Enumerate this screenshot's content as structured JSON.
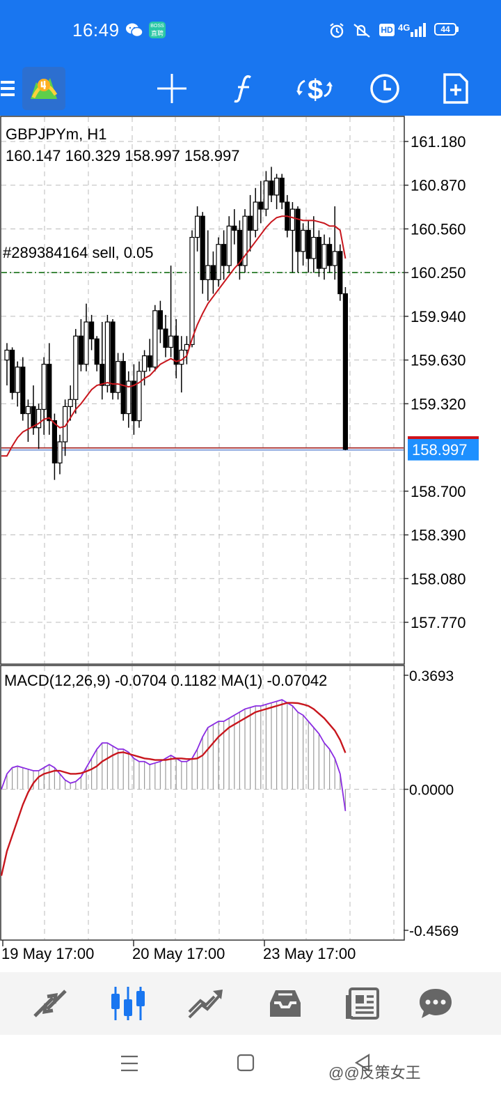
{
  "status_bar": {
    "time": "16:49",
    "boss_badge_top": "BOSS",
    "boss_badge_bottom": "直聘",
    "hd": "HD",
    "network": "4G",
    "battery": "44"
  },
  "toolbar": {
    "icons": [
      "menu-icon",
      "mt4-logo-icon",
      "crosshair-icon",
      "indicators-icon",
      "trade-icon",
      "timeframe-icon",
      "new-order-icon"
    ]
  },
  "chart": {
    "symbol_timeframe": "GBPJPYm, H1",
    "ohlc": "160.147 160.329 158.997 158.997",
    "order_label": "#289384164 sell, 0.05",
    "current_price": "158.997",
    "colors": {
      "ma": "#c8161d",
      "order_line": "#006400",
      "bid_line": "#a52a2a",
      "price_tag": "#1e90ff",
      "macd_signal": "#8a2be2"
    },
    "price_ticks": [
      "161.180",
      "160.870",
      "160.560",
      "160.250",
      "159.940",
      "159.630",
      "159.320",
      "158.700",
      "158.390",
      "158.080",
      "157.770"
    ],
    "macd_label": "MACD(12,26,9) -0.0704 0.1182 MA(1) -0.07042",
    "macd_ticks": [
      "0.3693",
      "0.0000",
      "-0.4569"
    ],
    "time_labels": [
      "19 May 17:00",
      "20 May 17:00",
      "23 May 17:00"
    ]
  },
  "chart_data": {
    "type": "candlestick",
    "symbol": "GBPJPYm",
    "timeframe": "H1",
    "ylim": [
      157.6,
      161.3
    ],
    "order_price": 160.25,
    "bid_price": 158.997,
    "candles": [
      [
        159.63,
        159.75,
        159.45,
        159.7
      ],
      [
        159.7,
        159.72,
        159.35,
        159.4
      ],
      [
        159.4,
        159.62,
        159.3,
        159.58
      ],
      [
        159.58,
        159.65,
        159.2,
        159.25
      ],
      [
        159.25,
        159.35,
        159.05,
        159.3
      ],
      [
        159.3,
        159.45,
        159.1,
        159.15
      ],
      [
        159.15,
        159.32,
        159.0,
        159.28
      ],
      [
        159.28,
        159.65,
        159.1,
        159.6
      ],
      [
        159.6,
        159.75,
        159.1,
        159.2
      ],
      [
        159.2,
        159.25,
        158.78,
        158.9
      ],
      [
        158.9,
        159.1,
        158.82,
        159.05
      ],
      [
        159.05,
        159.35,
        158.95,
        159.3
      ],
      [
        159.3,
        159.45,
        159.2,
        159.35
      ],
      [
        159.35,
        159.85,
        159.25,
        159.8
      ],
      [
        159.8,
        159.92,
        159.55,
        159.6
      ],
      [
        159.6,
        160.03,
        159.55,
        159.9
      ],
      [
        159.9,
        159.95,
        159.7,
        159.78
      ],
      [
        159.78,
        159.8,
        159.55,
        159.6
      ],
      [
        159.6,
        159.9,
        159.35,
        159.45
      ],
      [
        159.45,
        159.95,
        159.4,
        159.9
      ],
      [
        159.9,
        159.92,
        159.35,
        159.4
      ],
      [
        159.4,
        159.68,
        159.35,
        159.62
      ],
      [
        159.62,
        159.68,
        159.2,
        159.25
      ],
      [
        159.25,
        159.55,
        159.15,
        159.48
      ],
      [
        159.48,
        159.6,
        159.1,
        159.2
      ],
      [
        159.2,
        159.62,
        159.15,
        159.55
      ],
      [
        159.55,
        159.7,
        159.45,
        159.66
      ],
      [
        159.66,
        159.78,
        159.55,
        159.58
      ],
      [
        159.58,
        160.02,
        159.55,
        159.98
      ],
      [
        159.98,
        160.05,
        159.75,
        159.85
      ],
      [
        159.85,
        159.95,
        159.65,
        159.72
      ],
      [
        159.72,
        160.3,
        159.65,
        159.8
      ],
      [
        159.8,
        159.92,
        159.5,
        159.6
      ],
      [
        159.6,
        159.8,
        159.4,
        159.7
      ],
      [
        159.7,
        159.8,
        159.6,
        159.74
      ],
      [
        159.74,
        160.55,
        159.72,
        160.5
      ],
      [
        160.5,
        160.72,
        160.4,
        160.65
      ],
      [
        160.65,
        160.68,
        160.1,
        160.2
      ],
      [
        160.2,
        160.55,
        160.05,
        160.3
      ],
      [
        160.3,
        160.4,
        160.1,
        160.2
      ],
      [
        160.2,
        160.5,
        160.15,
        160.45
      ],
      [
        160.45,
        160.55,
        160.2,
        160.3
      ],
      [
        160.3,
        160.65,
        160.25,
        160.58
      ],
      [
        160.58,
        160.7,
        160.45,
        160.55
      ],
      [
        160.55,
        160.62,
        160.2,
        160.3
      ],
      [
        160.3,
        160.7,
        160.25,
        160.65
      ],
      [
        160.65,
        160.8,
        160.4,
        160.55
      ],
      [
        160.55,
        160.85,
        160.5,
        160.75
      ],
      [
        160.75,
        160.9,
        160.6,
        160.7
      ],
      [
        160.7,
        160.97,
        160.65,
        160.9
      ],
      [
        160.9,
        161.0,
        160.75,
        160.8
      ],
      [
        160.8,
        160.95,
        160.7,
        160.92
      ],
      [
        160.92,
        160.95,
        160.7,
        160.75
      ],
      [
        160.75,
        160.8,
        160.5,
        160.55
      ],
      [
        160.55,
        160.75,
        160.25,
        160.7
      ],
      [
        160.7,
        160.72,
        160.25,
        160.4
      ],
      [
        160.4,
        160.6,
        160.3,
        160.55
      ],
      [
        160.55,
        160.62,
        160.25,
        160.35
      ],
      [
        160.35,
        160.65,
        160.25,
        160.5
      ],
      [
        160.5,
        160.55,
        160.22,
        160.28
      ],
      [
        160.28,
        160.52,
        160.2,
        160.45
      ],
      [
        160.45,
        160.5,
        160.25,
        160.3
      ],
      [
        160.3,
        160.72,
        160.2,
        160.4
      ],
      [
        160.4,
        160.45,
        160.05,
        160.1
      ],
      [
        160.1,
        160.147,
        158.99,
        158.997
      ]
    ],
    "ma": [
      158.95,
      159.02,
      159.08,
      159.12,
      159.14,
      159.16,
      159.18,
      159.21,
      159.22,
      159.18,
      159.15,
      159.16,
      159.22,
      159.28,
      159.32,
      159.37,
      159.42,
      159.45,
      159.46,
      159.47,
      159.46,
      159.46,
      159.45,
      159.44,
      159.45,
      159.47,
      159.5,
      159.52,
      159.56,
      159.6,
      159.62,
      159.64,
      159.62,
      159.63,
      159.66,
      159.78,
      159.88,
      159.96,
      160.03,
      160.08,
      160.13,
      160.18,
      160.23,
      160.28,
      160.32,
      160.37,
      160.42,
      160.47,
      160.52,
      160.57,
      160.61,
      160.64,
      160.65,
      160.65,
      160.64,
      160.63,
      160.62,
      160.62,
      160.62,
      160.61,
      160.6,
      160.58,
      160.58,
      160.55,
      160.35
    ],
    "macd": {
      "ylim": [
        -0.4569,
        0.3693
      ],
      "histogram": [
        0.05,
        0.07,
        0.075,
        0.07,
        0.065,
        0.06,
        0.06,
        0.07,
        0.08,
        0.07,
        0.05,
        0.03,
        0.02,
        0.025,
        0.04,
        0.07,
        0.1,
        0.13,
        0.15,
        0.15,
        0.14,
        0.13,
        0.13,
        0.12,
        0.1,
        0.09,
        0.09,
        0.08,
        0.085,
        0.09,
        0.1,
        0.11,
        0.1,
        0.09,
        0.09,
        0.1,
        0.13,
        0.17,
        0.2,
        0.21,
        0.22,
        0.22,
        0.23,
        0.24,
        0.25,
        0.26,
        0.265,
        0.27,
        0.27,
        0.275,
        0.28,
        0.285,
        0.29,
        0.28,
        0.27,
        0.25,
        0.24,
        0.22,
        0.2,
        0.18,
        0.15,
        0.13,
        0.1,
        0.05,
        -0.0704
      ],
      "signal": [
        -0.2,
        -0.15,
        -0.1,
        -0.05,
        -0.01,
        0.02,
        0.04,
        0.05,
        0.055,
        0.06,
        0.06,
        0.055,
        0.05,
        0.05,
        0.052,
        0.058,
        0.065,
        0.075,
        0.09,
        0.1,
        0.11,
        0.118,
        0.12,
        0.115,
        0.11,
        0.105,
        0.1,
        0.098,
        0.095,
        0.095,
        0.095,
        0.098,
        0.1,
        0.1,
        0.098,
        0.098,
        0.1,
        0.11,
        0.13,
        0.15,
        0.17,
        0.185,
        0.2,
        0.21,
        0.22,
        0.23,
        0.24,
        0.25,
        0.255,
        0.26,
        0.265,
        0.27,
        0.275,
        0.28,
        0.28,
        0.279,
        0.275,
        0.27,
        0.26,
        0.245,
        0.23,
        0.21,
        0.19,
        0.16,
        0.1182
      ]
    }
  }
}
